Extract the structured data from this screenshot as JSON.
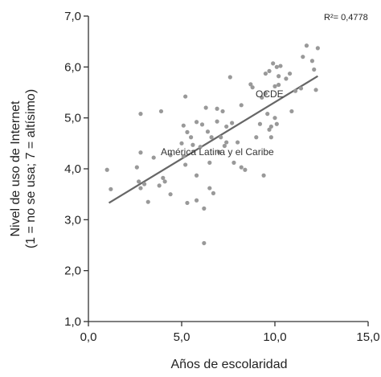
{
  "chart_data": {
    "type": "scatter",
    "xlabel": "Años de escolaridad",
    "ylabel_line1": "Nivel de uso de Internet",
    "ylabel_line2": "(1 = no se usa; 7 = altísimo)",
    "xlim": [
      0,
      15
    ],
    "ylim": [
      1,
      7
    ],
    "xticks": [
      0,
      5,
      10,
      15
    ],
    "xtick_labels": [
      "0,0",
      "5,0",
      "10,0",
      "15,0"
    ],
    "yticks": [
      1,
      2,
      3,
      4,
      5,
      6,
      7
    ],
    "ytick_labels": [
      "1,0",
      "2,0",
      "3,0",
      "4,0",
      "5,0",
      "6,0",
      "7,0"
    ],
    "r2_label": "R²= 0,4778",
    "annotations": [
      {
        "text": "OCDE",
        "x": 9.4,
        "y": 5.42
      },
      {
        "text": "América Latina y el Caribe",
        "x": 4.9,
        "y": 4.27
      }
    ],
    "trendline": {
      "x": [
        1.1,
        12.3
      ],
      "y": [
        3.33,
        5.82
      ]
    },
    "point_color": "#999999",
    "line_color": "#666666",
    "points": [
      [
        1.0,
        3.98
      ],
      [
        1.2,
        3.6
      ],
      [
        2.6,
        4.03
      ],
      [
        2.8,
        5.08
      ],
      [
        2.8,
        4.32
      ],
      [
        2.7,
        3.75
      ],
      [
        2.8,
        3.62
      ],
      [
        3.2,
        3.35
      ],
      [
        3.0,
        3.7
      ],
      [
        3.5,
        4.22
      ],
      [
        3.8,
        3.67
      ],
      [
        3.9,
        5.13
      ],
      [
        4.0,
        3.82
      ],
      [
        4.1,
        3.75
      ],
      [
        4.4,
        4.27
      ],
      [
        4.4,
        3.5
      ],
      [
        5.0,
        4.5
      ],
      [
        5.1,
        4.85
      ],
      [
        5.2,
        5.42
      ],
      [
        5.1,
        4.25
      ],
      [
        5.2,
        4.08
      ],
      [
        5.3,
        3.33
      ],
      [
        5.3,
        4.72
      ],
      [
        5.5,
        4.62
      ],
      [
        5.6,
        4.47
      ],
      [
        5.8,
        4.92
      ],
      [
        5.8,
        3.87
      ],
      [
        5.8,
        3.38
      ],
      [
        6.0,
        4.43
      ],
      [
        6.1,
        4.87
      ],
      [
        6.2,
        3.22
      ],
      [
        6.2,
        2.54
      ],
      [
        6.3,
        5.2
      ],
      [
        6.4,
        4.73
      ],
      [
        6.5,
        4.12
      ],
      [
        6.5,
        3.62
      ],
      [
        6.6,
        4.62
      ],
      [
        6.7,
        3.52
      ],
      [
        6.9,
        4.93
      ],
      [
        6.9,
        5.18
      ],
      [
        7.0,
        4.33
      ],
      [
        7.1,
        4.62
      ],
      [
        7.2,
        5.13
      ],
      [
        7.3,
        4.45
      ],
      [
        7.4,
        4.83
      ],
      [
        7.4,
        4.52
      ],
      [
        7.6,
        5.8
      ],
      [
        7.7,
        4.9
      ],
      [
        7.8,
        4.12
      ],
      [
        8.0,
        4.52
      ],
      [
        8.2,
        4.03
      ],
      [
        8.2,
        5.25
      ],
      [
        8.4,
        3.98
      ],
      [
        8.7,
        5.66
      ],
      [
        8.8,
        5.6
      ],
      [
        9.0,
        4.62
      ],
      [
        9.2,
        4.88
      ],
      [
        9.3,
        5.4
      ],
      [
        9.4,
        3.87
      ],
      [
        9.5,
        5.48
      ],
      [
        9.5,
        5.87
      ],
      [
        9.6,
        5.08
      ],
      [
        9.7,
        4.77
      ],
      [
        9.8,
        4.62
      ],
      [
        9.7,
        5.92
      ],
      [
        9.8,
        4.83
      ],
      [
        9.9,
        6.07
      ],
      [
        10.0,
        5.62
      ],
      [
        10.1,
        4.88
      ],
      [
        10.2,
        5.65
      ],
      [
        10.1,
        6.0
      ],
      [
        10.2,
        5.82
      ],
      [
        10.0,
        5.0
      ],
      [
        10.3,
        6.02
      ],
      [
        10.6,
        5.77
      ],
      [
        10.8,
        5.87
      ],
      [
        10.9,
        5.13
      ],
      [
        11.1,
        5.53
      ],
      [
        11.4,
        5.58
      ],
      [
        11.5,
        6.2
      ],
      [
        11.7,
        6.42
      ],
      [
        12.0,
        6.12
      ],
      [
        12.1,
        5.95
      ],
      [
        12.2,
        5.55
      ],
      [
        12.3,
        6.37
      ]
    ]
  }
}
